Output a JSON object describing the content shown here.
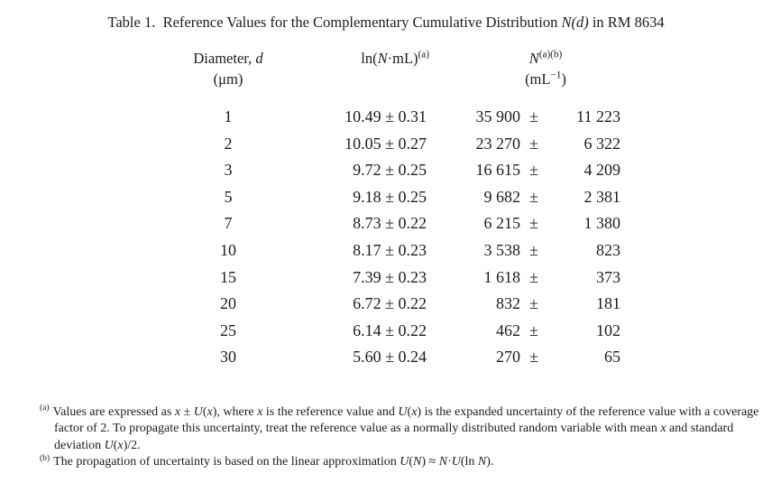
{
  "title": {
    "segments": [
      {
        "t": "Table 1.  Reference Values for the Complementary Cumulative Distribution "
      },
      {
        "t": "N(d)",
        "i": true
      },
      {
        "t": " in RM 8634"
      }
    ]
  },
  "table": {
    "plus_minus": "±",
    "headers": {
      "diameter": {
        "segments": [
          {
            "t": "Diameter, "
          },
          {
            "t": "d",
            "i": true
          }
        ],
        "unit": "(μm)"
      },
      "ln": {
        "segments": [
          {
            "t": "ln("
          },
          {
            "t": "N",
            "i": true
          },
          {
            "t": "·mL)"
          },
          {
            "t": "(a)",
            "sup": true
          }
        ]
      },
      "n": {
        "segments": [
          {
            "t": "N",
            "i": true
          },
          {
            "t": "(a)(b)",
            "sup": true
          }
        ],
        "unit_segments": [
          {
            "t": "(mL"
          },
          {
            "t": "−1",
            "sup": true
          },
          {
            "t": ")"
          }
        ]
      }
    },
    "rows": [
      {
        "d": "1",
        "ln_value": "10.49",
        "ln_unc": "0.31",
        "n_value": "35 900",
        "n_unc": "11 223"
      },
      {
        "d": "2",
        "ln_value": "10.05",
        "ln_unc": "0.27",
        "n_value": "23 270",
        "n_unc": "6 322"
      },
      {
        "d": "3",
        "ln_value": "9.72",
        "ln_unc": "0.25",
        "n_value": "16 615",
        "n_unc": "4 209"
      },
      {
        "d": "5",
        "ln_value": "9.18",
        "ln_unc": "0.25",
        "n_value": "9 682",
        "n_unc": "2 381"
      },
      {
        "d": "7",
        "ln_value": "8.73",
        "ln_unc": "0.22",
        "n_value": "6 215",
        "n_unc": "1 380"
      },
      {
        "d": "10",
        "ln_value": "8.17",
        "ln_unc": "0.23",
        "n_value": "3 538",
        "n_unc": "823"
      },
      {
        "d": "15",
        "ln_value": "7.39",
        "ln_unc": "0.23",
        "n_value": "1 618",
        "n_unc": "373"
      },
      {
        "d": "20",
        "ln_value": "6.72",
        "ln_unc": "0.22",
        "n_value": "832",
        "n_unc": "181"
      },
      {
        "d": "25",
        "ln_value": "6.14",
        "ln_unc": "0.22",
        "n_value": "462",
        "n_unc": "102"
      },
      {
        "d": "30",
        "ln_value": "5.60",
        "ln_unc": "0.24",
        "n_value": "270",
        "n_unc": "65"
      }
    ]
  },
  "footnotes": {
    "a": {
      "marker": "(a)",
      "segments": [
        {
          "t": "Values are expressed as "
        },
        {
          "t": "x",
          "i": true
        },
        {
          "t": " ± "
        },
        {
          "t": "U",
          "i": true
        },
        {
          "t": "("
        },
        {
          "t": "x",
          "i": true
        },
        {
          "t": "), where "
        },
        {
          "t": "x",
          "i": true
        },
        {
          "t": " is the reference value and "
        },
        {
          "t": "U",
          "i": true
        },
        {
          "t": "("
        },
        {
          "t": "x",
          "i": true
        },
        {
          "t": ") is the expanded uncertainty of the reference value with a coverage factor of 2. To propagate this uncertainty, treat the reference value as a normally distributed random variable with mean "
        },
        {
          "t": "x",
          "i": true
        },
        {
          "t": " and standard deviation "
        },
        {
          "t": "U",
          "i": true
        },
        {
          "t": "("
        },
        {
          "t": "x",
          "i": true
        },
        {
          "t": ")/2."
        }
      ]
    },
    "b": {
      "marker": "(b)",
      "segments": [
        {
          "t": "The propagation of uncertainty is based on the linear approximation "
        },
        {
          "t": "U",
          "i": true
        },
        {
          "t": "("
        },
        {
          "t": "N",
          "i": true
        },
        {
          "t": ") ≈ "
        },
        {
          "t": "N",
          "i": true
        },
        {
          "t": "·"
        },
        {
          "t": "U",
          "i": true
        },
        {
          "t": "(ln "
        },
        {
          "t": "N",
          "i": true
        },
        {
          "t": ")."
        }
      ]
    }
  }
}
